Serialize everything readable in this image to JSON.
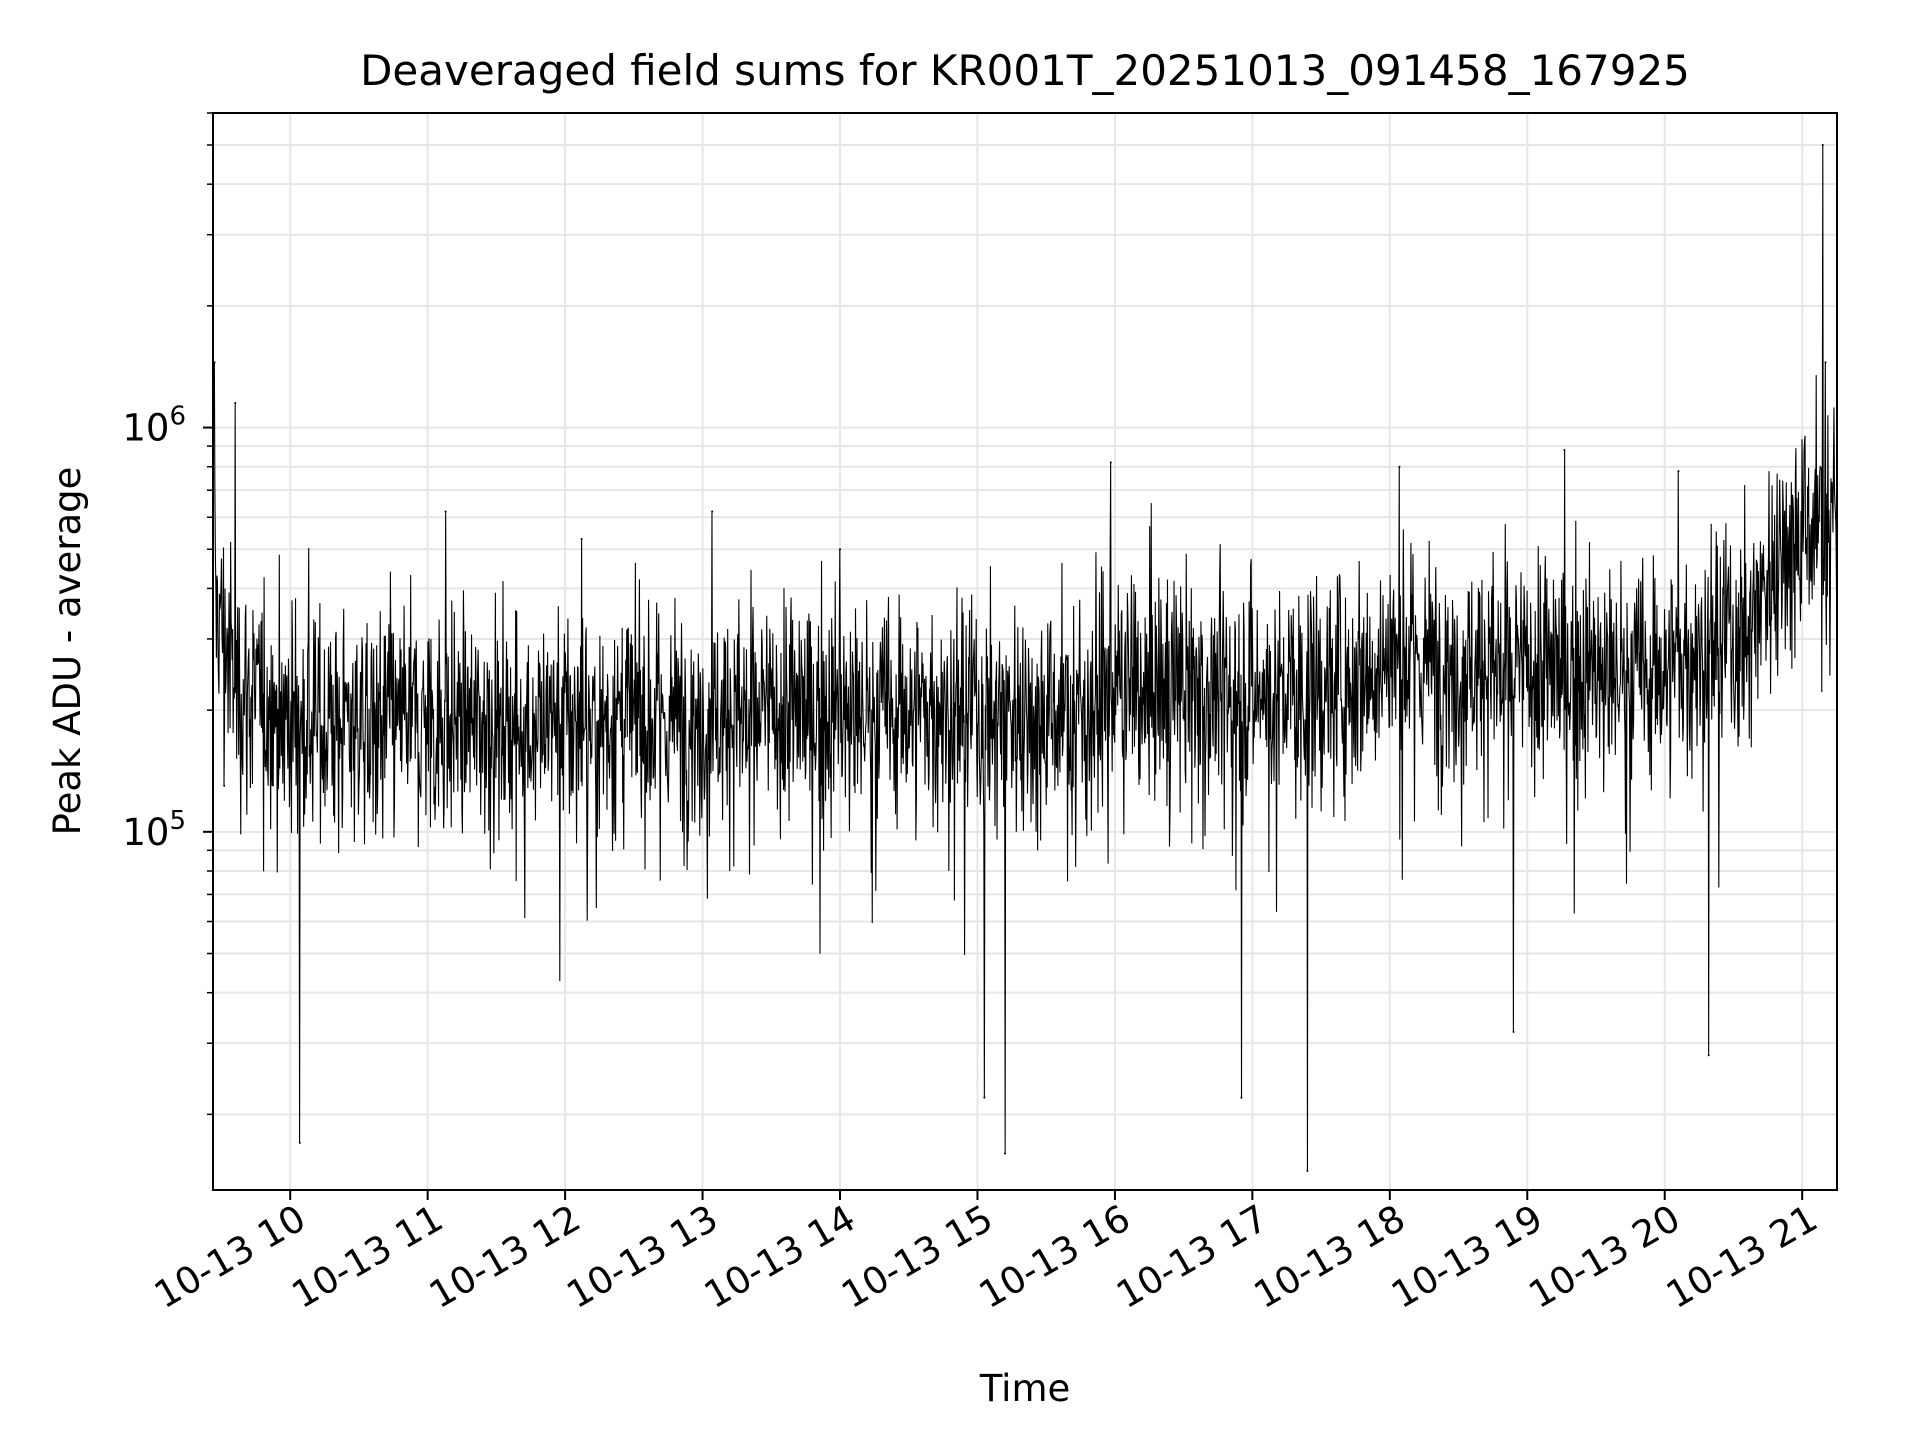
{
  "chart_data": {
    "type": "line",
    "title": "Deaveraged field sums for KR001T_20251013_091458_167925",
    "xlabel": "Time",
    "ylabel": "Peak ADU - average",
    "yscale": "log",
    "ylim": [
      13000,
      6000000
    ],
    "xlim_hours": [
      9.4383,
      21.2533
    ],
    "grid": true,
    "line_color": "#000000",
    "grid_color": "#e6e6e6",
    "x_ticks": [
      {
        "hour": 10,
        "label": "10-13 10"
      },
      {
        "hour": 11,
        "label": "10-13 11"
      },
      {
        "hour": 12,
        "label": "10-13 12"
      },
      {
        "hour": 13,
        "label": "10-13 13"
      },
      {
        "hour": 14,
        "label": "10-13 14"
      },
      {
        "hour": 15,
        "label": "10-13 15"
      },
      {
        "hour": 16,
        "label": "10-13 16"
      },
      {
        "hour": 17,
        "label": "10-13 17"
      },
      {
        "hour": 18,
        "label": "10-13 18"
      },
      {
        "hour": 19,
        "label": "10-13 19"
      },
      {
        "hour": 20,
        "label": "10-13 20"
      },
      {
        "hour": 21,
        "label": "10-13 21"
      }
    ],
    "y_ticks": [
      {
        "value": 100000,
        "base": "10",
        "exp": "5"
      },
      {
        "value": 1000000,
        "base": "10",
        "exp": "6"
      }
    ],
    "series": [
      {
        "name": "Peak ADU - average",
        "baseline_profile": [
          {
            "hour": 9.44,
            "value": 400000
          },
          {
            "hour": 9.6,
            "value": 230000
          },
          {
            "hour": 10.0,
            "value": 190000
          },
          {
            "hour": 12.0,
            "value": 185000
          },
          {
            "hour": 14.0,
            "value": 200000
          },
          {
            "hour": 15.8,
            "value": 200000
          },
          {
            "hour": 16.0,
            "value": 230000
          },
          {
            "hour": 17.5,
            "value": 220000
          },
          {
            "hour": 18.0,
            "value": 270000
          },
          {
            "hour": 19.0,
            "value": 250000
          },
          {
            "hour": 20.0,
            "value": 250000
          },
          {
            "hour": 20.6,
            "value": 320000
          },
          {
            "hour": 20.9,
            "value": 560000
          },
          {
            "hour": 21.25,
            "value": 600000
          }
        ],
        "notable_points": [
          {
            "hour": 9.45,
            "value": 1450000
          },
          {
            "hour": 9.52,
            "value": 130000
          },
          {
            "hour": 9.6,
            "value": 1150000
          },
          {
            "hour": 10.07,
            "value": 17000
          },
          {
            "hour": 11.13,
            "value": 620000
          },
          {
            "hour": 12.12,
            "value": 530000
          },
          {
            "hour": 13.07,
            "value": 620000
          },
          {
            "hour": 14.0,
            "value": 500000
          },
          {
            "hour": 15.05,
            "value": 22000
          },
          {
            "hour": 15.2,
            "value": 16000
          },
          {
            "hour": 15.97,
            "value": 820000
          },
          {
            "hour": 16.92,
            "value": 22000
          },
          {
            "hour": 17.4,
            "value": 14500
          },
          {
            "hour": 18.07,
            "value": 800000
          },
          {
            "hour": 18.9,
            "value": 32000
          },
          {
            "hour": 19.27,
            "value": 880000
          },
          {
            "hour": 20.1,
            "value": 780000
          },
          {
            "hour": 20.32,
            "value": 28000
          },
          {
            "hour": 21.15,
            "value": 5000000
          },
          {
            "hour": 21.17,
            "value": 1450000
          }
        ]
      }
    ]
  }
}
